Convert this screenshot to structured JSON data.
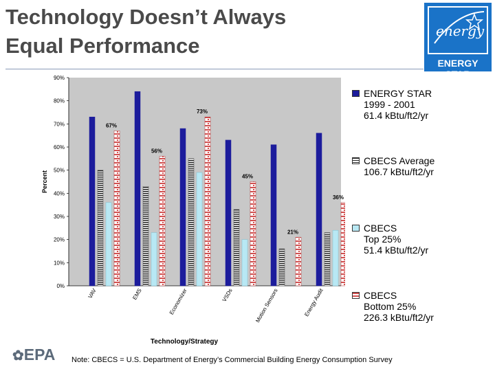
{
  "title": {
    "line1": "Technology Doesn’t Always",
    "line2": "Equal Performance"
  },
  "logo": {
    "script": "energy",
    "text": "ENERGY STAR"
  },
  "epa_logo": "EPA",
  "note": "Note: CBECS = U.S. Department of Energy’s Commercial Building Energy Consumption Survey",
  "colors": {
    "energy_star": "#1c1c9c",
    "cbecs_avg": "#222222",
    "cbecs_top": "#b8e8f4",
    "cbecs_bottom": "#d25050",
    "plot_bg": "#c8c8c8"
  },
  "legend": [
    {
      "lines": [
        "ENERGY STAR",
        "1999 - 2001",
        "61.4 kBtu/ft2/yr"
      ]
    },
    {
      "lines": [
        "CBECS Average",
        "106.7 kBtu/ft2/yr"
      ]
    },
    {
      "lines": [
        "CBECS",
        "Top 25%",
        "51.4 kBtu/ft2/yr"
      ]
    },
    {
      "lines": [
        "CBECS",
        "Bottom 25%",
        "226.3 kBtu/ft2/yr"
      ]
    }
  ],
  "chart_data": {
    "type": "bar",
    "categories": [
      "VAV",
      "EMS",
      "Economizer",
      "VSDs",
      "Motion Sensors",
      "Energy Audit"
    ],
    "series": [
      {
        "name": "ENERGY STAR",
        "values": [
          73,
          84,
          68,
          63,
          61,
          66
        ]
      },
      {
        "name": "CBECS Average",
        "values": [
          50,
          43,
          55,
          33,
          16,
          23
        ]
      },
      {
        "name": "CBECS Top 25%",
        "values": [
          36,
          23,
          49,
          20,
          0,
          24
        ]
      },
      {
        "name": "CBECS Bottom 25%",
        "values": [
          67,
          56,
          73,
          45,
          21,
          36
        ]
      }
    ],
    "data_labels": [
      "67%",
      "56%",
      "73%",
      "45%",
      "21%",
      "36%"
    ],
    "xlabel": "Technology/Strategy",
    "ylabel": "Percent",
    "ylim": [
      0,
      90
    ],
    "yticks": [
      "0%",
      "10%",
      "20%",
      "30%",
      "40%",
      "50%",
      "60%",
      "70%",
      "80%",
      "90%"
    ],
    "grid": false,
    "legend_position": "right"
  }
}
